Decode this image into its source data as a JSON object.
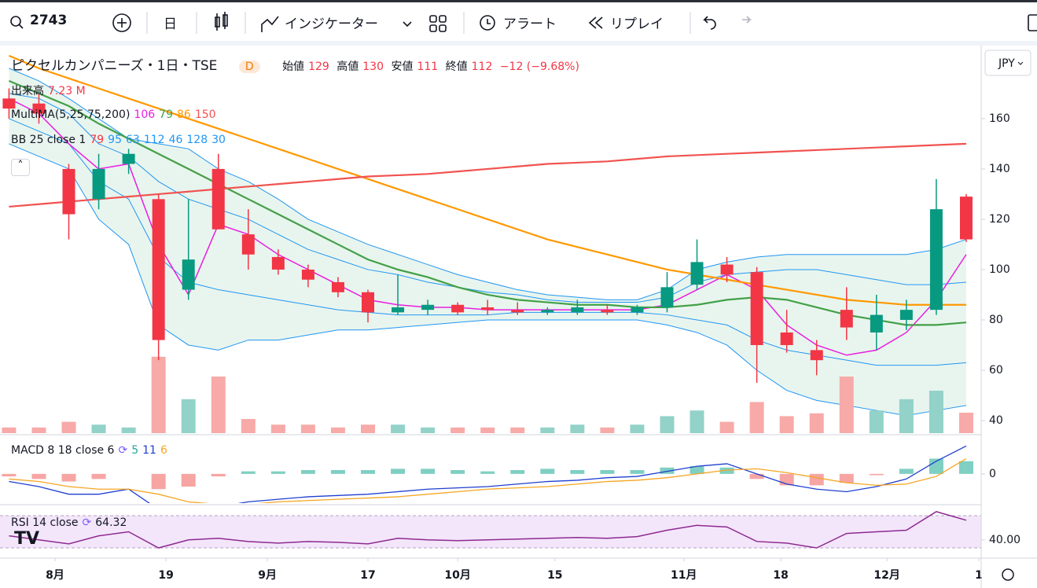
{
  "toolbar": {
    "symbol": "2743",
    "interval": "日",
    "indicators": "インジケーター",
    "alert": "アラート",
    "replay": "リプレイ"
  },
  "legend": {
    "title": "ピクセルカンパニーズ・1日・TSE",
    "badge": "D",
    "open": "始値",
    "high": "高値",
    "low": "安値",
    "close": "終値",
    "change": "−12 (−9.68%)",
    "volume_label": "出来高",
    "volume_value": "7.23 M",
    "ma": "MultiMA(5,25,75,200)",
    "bb": "BB 25 close 1",
    "bb_values": [
      79,
      95,
      63,
      112,
      46,
      128,
      30
    ],
    "macd": "MACD 8 18 close 6",
    "rsi": "RSI 14 close"
  },
  "currency": "JPY",
  "chart_data": [
    {
      "type": "candlestick",
      "x": [
        0,
        1,
        2,
        3,
        4,
        5,
        6,
        7,
        8,
        9,
        10,
        11,
        12,
        13,
        14,
        15,
        16,
        17,
        18,
        19,
        20,
        21,
        22,
        23,
        24,
        25,
        26,
        27,
        28,
        29,
        30,
        31,
        32
      ],
      "open": [
        168,
        166,
        140,
        128,
        142,
        128,
        92,
        140,
        114,
        105,
        100,
        95,
        91,
        83,
        84,
        86,
        85,
        84,
        83,
        83,
        84,
        83,
        85,
        94,
        102,
        99,
        75,
        68,
        84,
        75,
        80,
        84,
        129
      ],
      "high": [
        172,
        170,
        142,
        146,
        148,
        130,
        128,
        146,
        124,
        108,
        102,
        97,
        92,
        98,
        88,
        87,
        88,
        87,
        85,
        88,
        86,
        86,
        99,
        112,
        105,
        101,
        84,
        72,
        93,
        90,
        88,
        136,
        130
      ],
      "low": [
        160,
        158,
        112,
        124,
        138,
        64,
        88,
        116,
        100,
        98,
        93,
        89,
        79,
        82,
        82,
        82,
        82,
        82,
        82,
        82,
        82,
        82,
        83,
        92,
        95,
        55,
        67,
        58,
        72,
        68,
        76,
        82,
        111
      ],
      "close": [
        164,
        162,
        122,
        140,
        146,
        72,
        104,
        116,
        106,
        100,
        96,
        91,
        83,
        85,
        86,
        83,
        84,
        83,
        84,
        85,
        83,
        85,
        93,
        103,
        98,
        70,
        70,
        64,
        77,
        82,
        84,
        124,
        112
      ],
      "up_color": "#089981",
      "down_color": "#f23645",
      "ma": [
        {
          "color": "#e91ee0",
          "values": [
            168,
            162,
            150,
            140,
            142,
            110,
            90,
            118,
            114,
            106,
            100,
            94,
            88,
            86,
            85,
            85,
            84,
            84,
            84,
            84,
            84,
            84,
            86,
            92,
            98,
            92,
            78,
            70,
            66,
            68,
            75,
            88,
            106
          ]
        },
        {
          "color": "#43a047",
          "values": [
            175,
            170,
            165,
            158,
            152,
            146,
            140,
            134,
            128,
            122,
            116,
            110,
            104,
            100,
            97,
            93,
            90,
            88,
            87,
            86,
            86,
            85,
            85,
            86,
            88,
            89,
            88,
            85,
            82,
            80,
            78,
            78,
            79
          ]
        },
        {
          "color": "#ff9800",
          "values": [
            185,
            180,
            176,
            172,
            168,
            164,
            160,
            156,
            152,
            148,
            144,
            140,
            136,
            132,
            128,
            124,
            120,
            116,
            112,
            109,
            106,
            103,
            100,
            98,
            96,
            94,
            92,
            90,
            88,
            87,
            86,
            86,
            86
          ]
        },
        {
          "color": "#f05350",
          "values": [
            125,
            126,
            127,
            128,
            129,
            130,
            131,
            132,
            133,
            134,
            135,
            136,
            137,
            137.5,
            138,
            139,
            140,
            141,
            142,
            142.5,
            143,
            144,
            145,
            145.5,
            146,
            146.5,
            147,
            147.5,
            148,
            148.5,
            149,
            149.5,
            150
          ]
        }
      ],
      "bb": [
        {
          "color": "#2196f3",
          "values": [
            180,
            175,
            168,
            160,
            152,
            150,
            148,
            140,
            135,
            128,
            120,
            115,
            110,
            106,
            102,
            98,
            95,
            92,
            90,
            89,
            88,
            88,
            92,
            100,
            103,
            105,
            106,
            106,
            106,
            106,
            106,
            108,
            112
          ]
        },
        {
          "color": "#2196f3",
          "values": [
            170,
            168,
            162,
            150,
            145,
            135,
            128,
            124,
            120,
            114,
            108,
            104,
            100,
            98,
            95,
            93,
            91,
            90,
            88,
            87,
            87,
            87,
            89,
            95,
            98,
            99,
            100,
            100,
            98,
            96,
            94,
            94,
            95
          ]
        },
        {
          "color": "#2196f3",
          "values": [
            160,
            155,
            150,
            135,
            128,
            105,
            95,
            92,
            90,
            88,
            86,
            84,
            83,
            82,
            82,
            82,
            82,
            83,
            83,
            83,
            83,
            83,
            82,
            80,
            78,
            72,
            68,
            66,
            64,
            62,
            62,
            62,
            63
          ]
        },
        {
          "color": "#2196f3",
          "values": [
            150,
            145,
            140,
            120,
            110,
            78,
            70,
            68,
            72,
            72,
            74,
            76,
            76,
            77,
            78,
            79,
            80,
            80,
            80,
            80,
            80,
            80,
            78,
            75,
            70,
            60,
            52,
            48,
            46,
            44,
            42,
            44,
            46
          ]
        }
      ],
      "bb_fill": "#e8f5ee",
      "xlim": [
        -0.3,
        32.5
      ],
      "xticks": [
        {
          "value": 1.54,
          "label": "8月"
        },
        {
          "value": 5.25,
          "label": "19"
        },
        {
          "value": 8.64,
          "label": "9月"
        },
        {
          "value": 12.0,
          "label": "17"
        },
        {
          "value": 15.0,
          "label": "10月"
        },
        {
          "value": 18.25,
          "label": "15"
        },
        {
          "value": 22.56,
          "label": "11月"
        },
        {
          "value": 25.8,
          "label": "18"
        },
        {
          "value": 29.35,
          "label": "12月"
        },
        {
          "value": 32.42,
          "label": "1"
        }
      ],
      "ylim": [
        35,
        188.4
      ],
      "yticks": [
        40,
        60,
        80,
        100,
        120,
        140,
        160
      ]
    },
    {
      "type": "volume",
      "values": [
        2,
        2,
        4,
        3,
        2,
        27,
        12,
        20,
        5,
        3,
        3,
        2,
        3,
        3,
        2,
        2,
        2,
        2,
        2,
        3,
        2,
        3,
        6,
        8,
        4,
        11,
        6,
        7,
        20,
        8,
        12,
        15,
        7.23
      ],
      "up_color": "#92d2c8",
      "down_color": "#f7aaa8",
      "ylim": [
        0,
        40
      ]
    },
    {
      "type": "macd",
      "macd": [
        -3,
        -5,
        -8,
        -8,
        -6,
        -14,
        -16,
        -13,
        -11,
        -10,
        -9,
        -8.5,
        -8,
        -7,
        -6,
        -5.5,
        -5,
        -4,
        -3,
        -2.5,
        -1.5,
        -1,
        1,
        3,
        4,
        0,
        -4,
        -6,
        -7,
        -5,
        -2,
        5,
        11
      ],
      "signal": [
        -2,
        -3,
        -5,
        -6,
        -6,
        -8,
        -11,
        -12,
        -12,
        -11,
        -10.5,
        -10,
        -9.5,
        -9,
        -8,
        -7,
        -6,
        -5.5,
        -5,
        -4,
        -3,
        -2.5,
        -1.5,
        0,
        1.5,
        2,
        0.5,
        -1.5,
        -3.5,
        -4.5,
        -4,
        -1,
        6
      ],
      "hist": [
        -1,
        -2,
        -3,
        -2,
        0,
        -6,
        -5,
        -1,
        1,
        1,
        1.5,
        1.5,
        1.5,
        2,
        2,
        1.5,
        1,
        1.5,
        2,
        1.5,
        1.5,
        1.5,
        2.5,
        3,
        2.5,
        -2,
        -4.5,
        -4.5,
        -3.5,
        -0.5,
        2,
        6,
        5
      ],
      "macd_color": "#1f3fcf",
      "signal_color": "#f5a623",
      "pos_color": "#7fcfc3",
      "neg_color": "#f6a5a3",
      "ylim": [
        -11.5,
        14.5
      ],
      "yticks": [
        0
      ]
    },
    {
      "type": "line",
      "values": [
        45,
        40,
        35,
        45,
        50,
        30,
        40,
        42,
        38,
        36,
        38,
        37,
        35,
        42,
        40,
        39,
        40,
        41,
        42,
        43,
        42,
        44,
        52,
        58,
        56,
        38,
        36,
        30,
        48,
        50,
        52,
        75,
        64.32
      ],
      "color": "#8e2a90",
      "ylim": [
        19.3,
        81.7
      ],
      "yticks": [
        {
          "value": 40,
          "label": "40.00"
        }
      ]
    }
  ]
}
